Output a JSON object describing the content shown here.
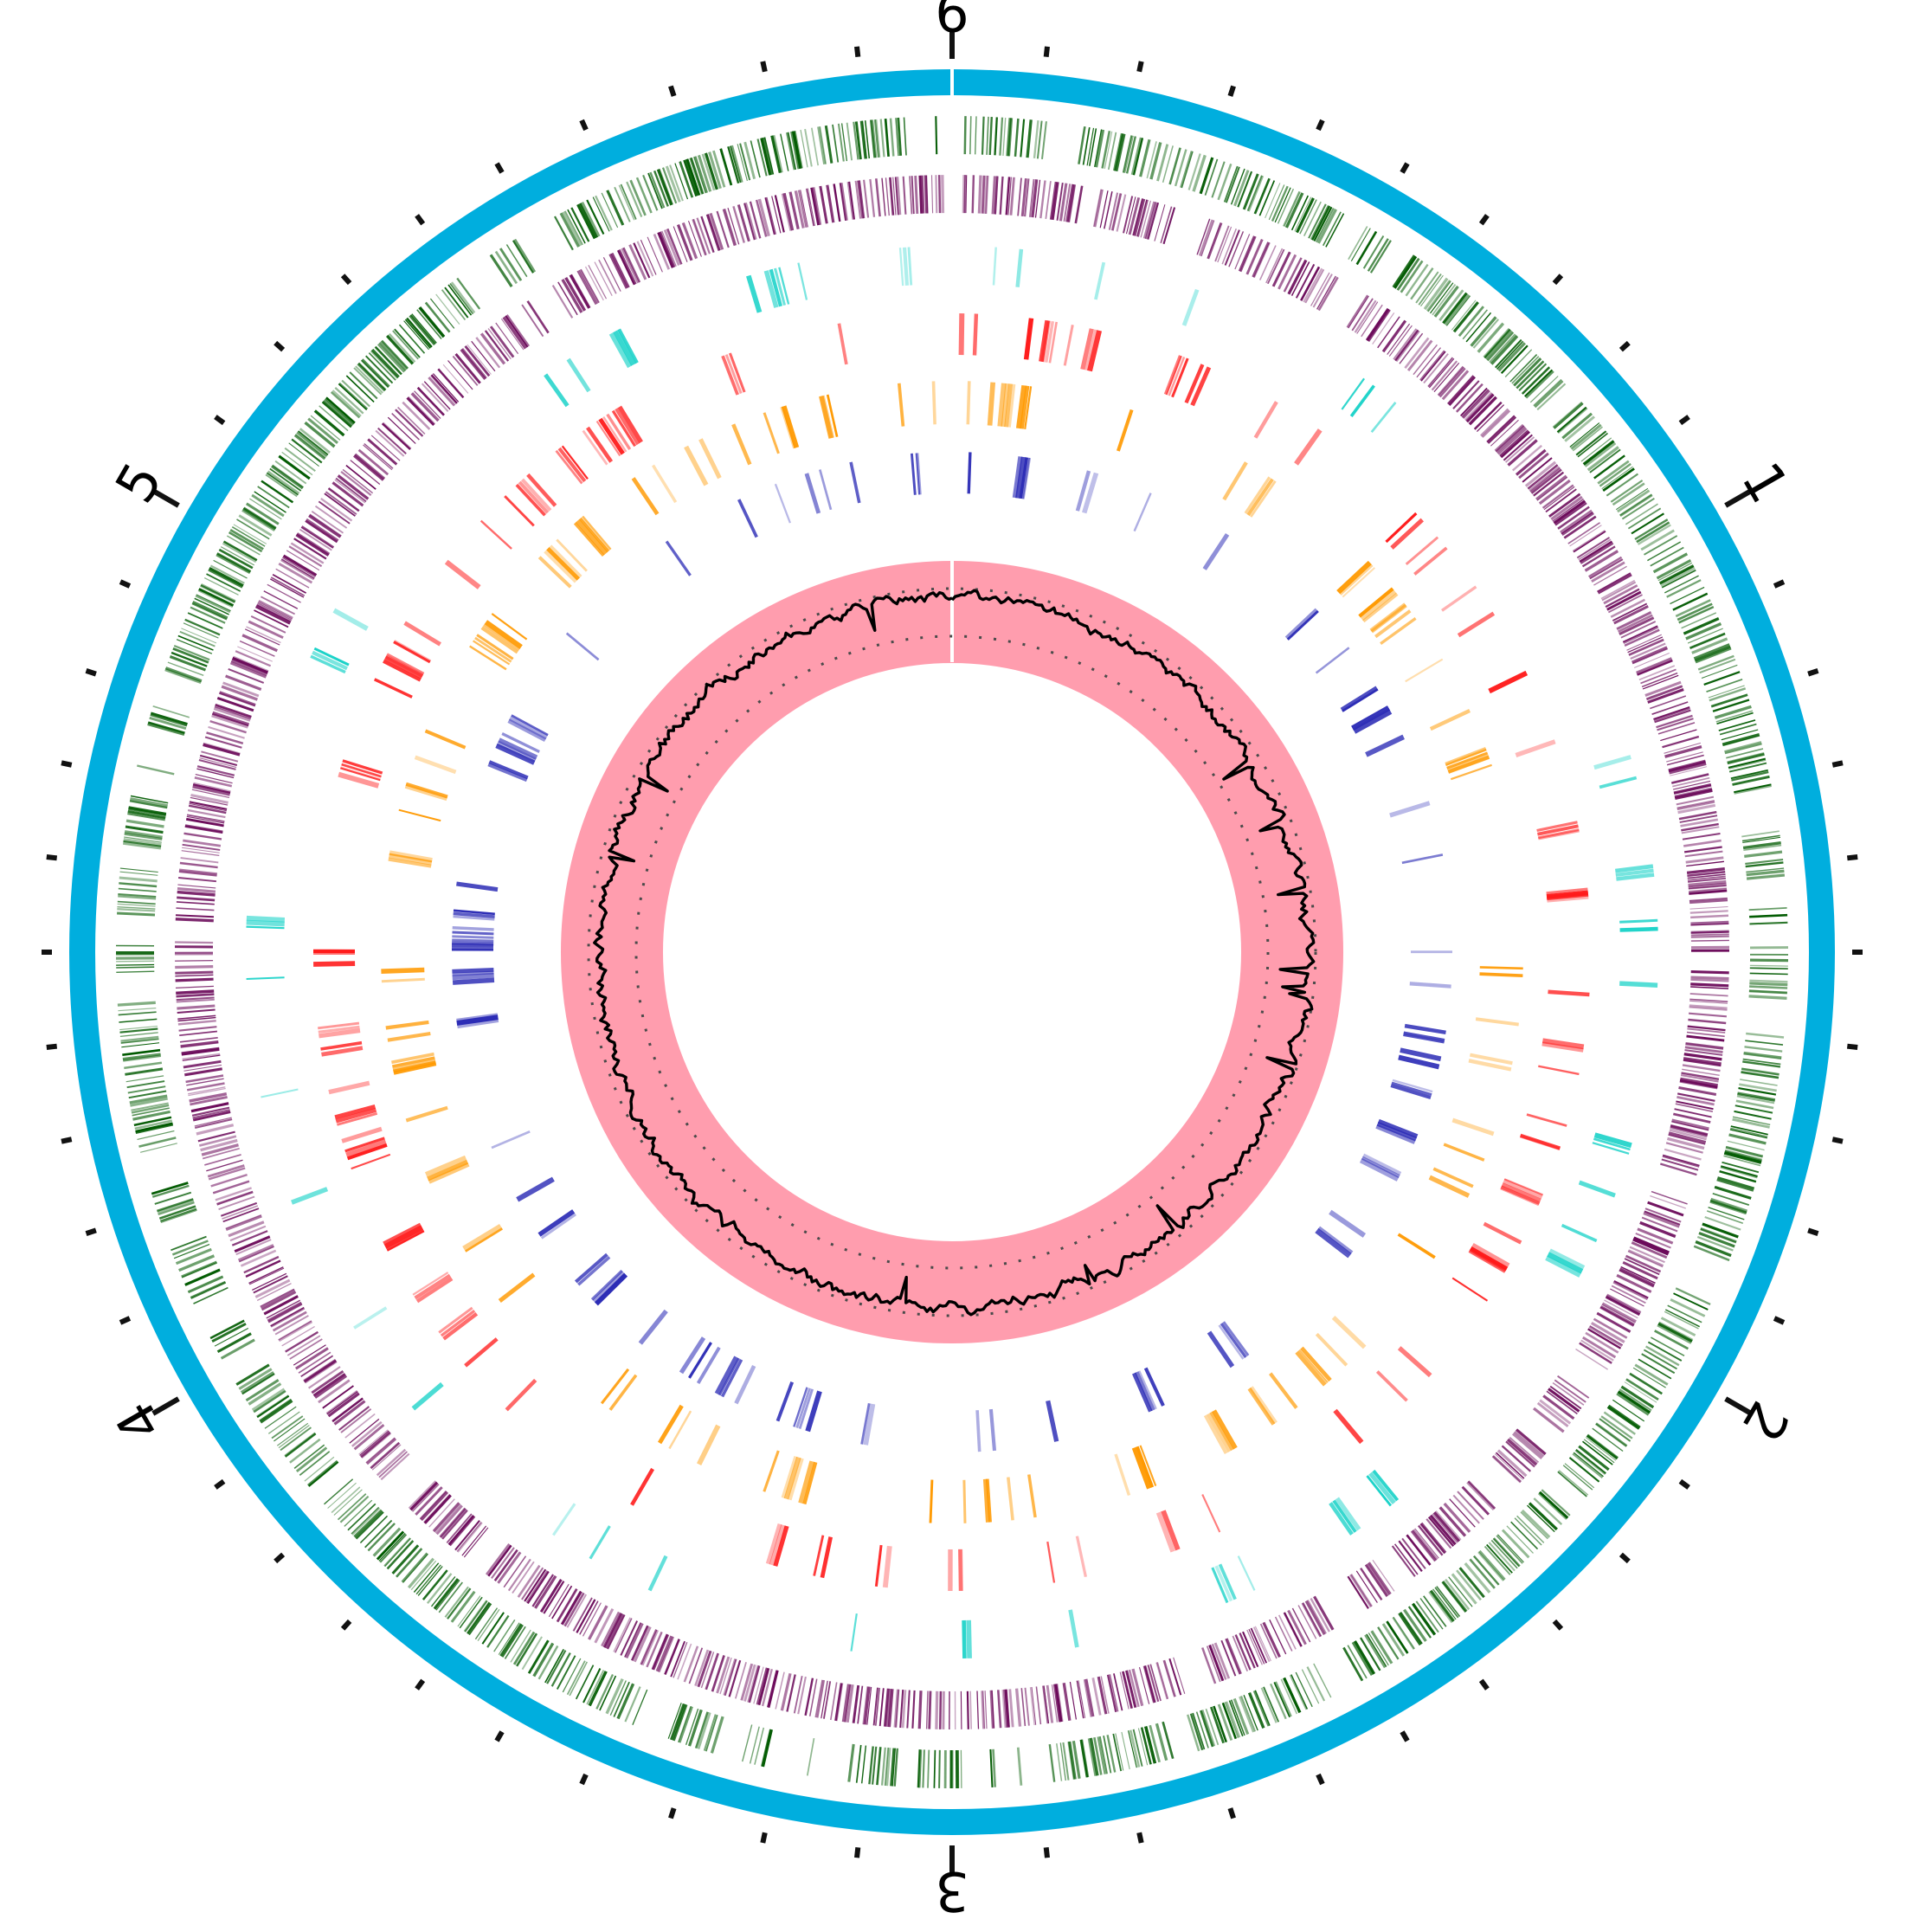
{
  "figure": {
    "type": "circular-genome-map",
    "scale_labels": [
      "1",
      "2",
      "3",
      "4",
      "5",
      "6"
    ],
    "tracks": [
      {
        "id": "backbone",
        "kind": "ring",
        "color": "#00AEDE"
      },
      {
        "id": "forward-cds",
        "kind": "feature-bars",
        "color": "#005A00"
      },
      {
        "id": "reverse-cds",
        "kind": "feature-bars",
        "color": "#6B0A5A"
      },
      {
        "id": "feature-track-a",
        "kind": "feature-bars",
        "color": "#19D2C8"
      },
      {
        "id": "feature-track-b",
        "kind": "feature-bars",
        "color": "#FF1A1A"
      },
      {
        "id": "feature-track-c",
        "kind": "feature-bars",
        "color": "#FF9900"
      },
      {
        "id": "feature-track-d",
        "kind": "feature-bars",
        "color": "#2B2BB5"
      },
      {
        "id": "gc-content",
        "kind": "line-on-band",
        "band_color": "#FF9DAE",
        "line_color": "#000000"
      }
    ]
  }
}
